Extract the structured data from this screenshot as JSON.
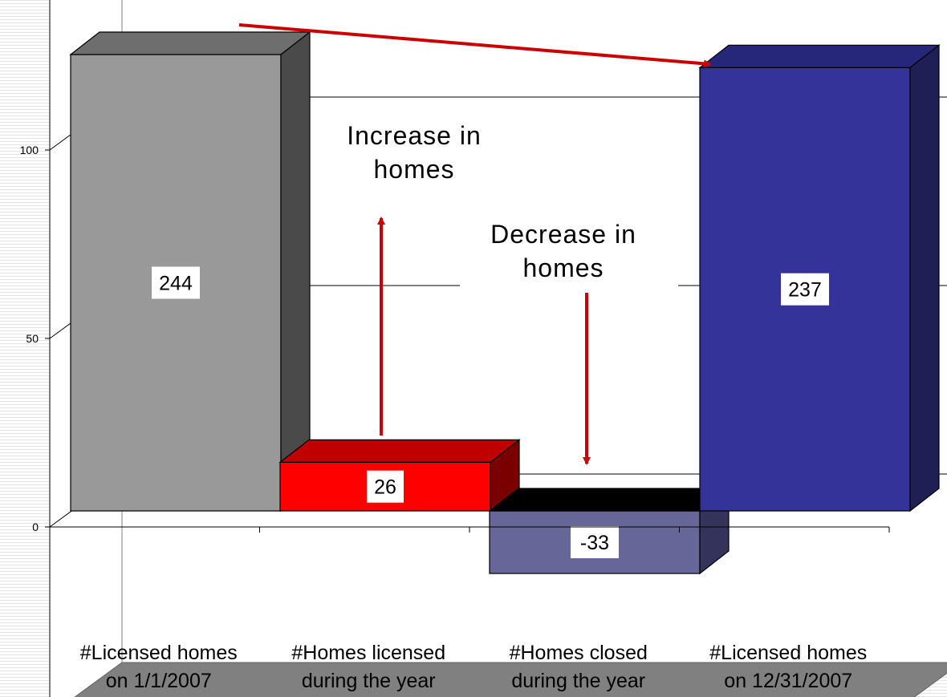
{
  "chart_data": {
    "type": "bar",
    "style": "3d-waterfall",
    "title": "",
    "xlabel": "",
    "ylabel": "",
    "ylim": [
      -50,
      250
    ],
    "yticks": [
      "-50",
      "0",
      "50",
      "100",
      "150",
      "200",
      "250"
    ],
    "grid": true,
    "legend": "none",
    "categories": [
      [
        "#Licensed homes",
        "on 1/1/2007"
      ],
      [
        "#Homes licensed",
        "during the year"
      ],
      [
        "#Homes closed",
        "during the year"
      ],
      [
        "#Licensed homes",
        "on 12/31/2007"
      ]
    ],
    "bars": [
      {
        "label": "244",
        "value": 244,
        "base": 0,
        "top": 244,
        "colors": {
          "front": "#999999",
          "top": "#6e6e6e",
          "side": "#4a4a4a"
        }
      },
      {
        "label": "26",
        "value": 26,
        "base": 0,
        "top": 26,
        "colors": {
          "front": "#ff0000",
          "top": "#c00000",
          "side": "#7a0000"
        }
      },
      {
        "label": "-33",
        "value": -33,
        "base": -33,
        "top": 0,
        "colors": {
          "front": "#666699",
          "top": "#000000",
          "side": "#33335c"
        }
      },
      {
        "label": "237",
        "value": 237,
        "base": 0,
        "top": 237,
        "colors": {
          "front": "#333399",
          "top": "#26267a",
          "side": "#1f1f55"
        }
      }
    ],
    "annotations": [
      {
        "lines": [
          "Increase in",
          "homes"
        ],
        "arrow": "up",
        "color": "#cc0000"
      },
      {
        "lines": [
          "Decrease in",
          "homes"
        ],
        "arrow": "down",
        "color": "#cc0000"
      }
    ],
    "trend_arrow": {
      "from_category": 0,
      "to_category": 3,
      "color": "#cc0000"
    }
  }
}
